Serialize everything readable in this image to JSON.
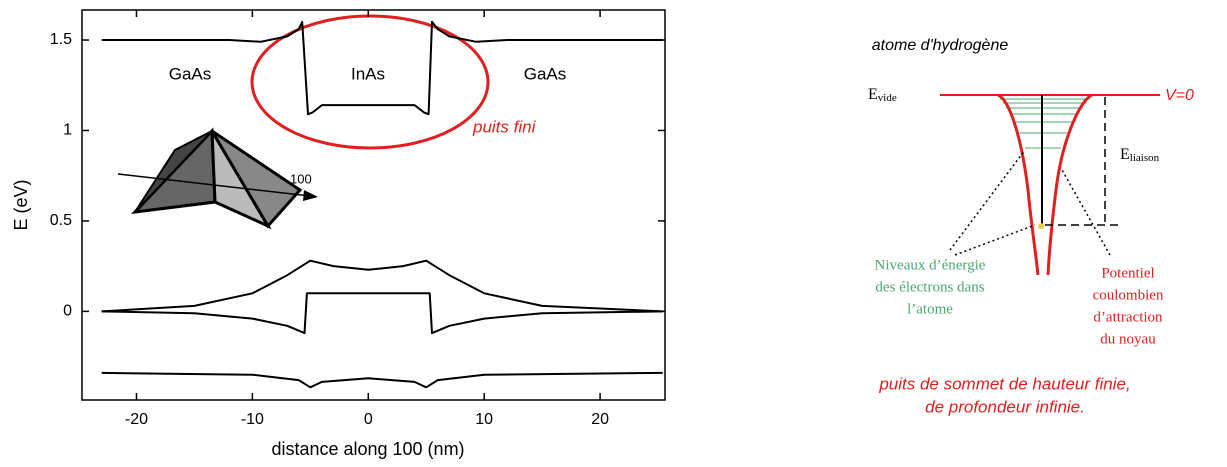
{
  "chart_data": {
    "type": "line",
    "xlabel": "distance along 100  (nm)",
    "ylabel": "E  (eV)",
    "xlim": [
      -24.7,
      25.6
    ],
    "ylim": [
      -0.49,
      1.666
    ],
    "xticks": [
      -20,
      -10,
      0,
      10,
      20
    ],
    "yticks": [
      0,
      0.5,
      1,
      1.5
    ],
    "series": [
      {
        "color": "#000000",
        "x": [
          -23,
          -12,
          -9.3,
          -7,
          -6,
          -5.7,
          -5.2,
          -4.8,
          -4,
          0,
          4,
          4.8,
          5.2,
          5.5,
          6,
          7,
          9.3,
          12,
          25.4
        ],
        "values": [
          1.5,
          1.5,
          1.49,
          1.52,
          1.56,
          1.6,
          1.09,
          1.1,
          1.14,
          1.14,
          1.14,
          1.1,
          1.09,
          1.6,
          1.56,
          1.52,
          1.49,
          1.5,
          1.5
        ]
      },
      {
        "color": "#000000",
        "x": [
          -23,
          -15,
          -10,
          -7,
          -5,
          -3,
          0,
          3,
          5,
          7,
          10,
          15,
          25.4
        ],
        "values": [
          0,
          0.03,
          0.1,
          0.2,
          0.28,
          0.25,
          0.23,
          0.25,
          0.28,
          0.2,
          0.1,
          0.03,
          0
        ]
      },
      {
        "color": "#000000",
        "x": [
          -23,
          -15,
          -10,
          -7,
          -5.5,
          -5.3,
          5.3,
          5.5,
          7,
          10,
          15,
          25.4
        ],
        "values": [
          0,
          -0.01,
          -0.04,
          -0.08,
          -0.12,
          0.1,
          0.1,
          -0.12,
          -0.08,
          -0.04,
          -0.01,
          0
        ]
      },
      {
        "color": "#000000",
        "x": [
          -23,
          -10,
          -6,
          -5,
          -4,
          0,
          4,
          5,
          6,
          10,
          25.4
        ],
        "values": [
          -0.34,
          -0.35,
          -0.38,
          -0.42,
          -0.39,
          -0.37,
          -0.39,
          -0.42,
          -0.38,
          -0.35,
          -0.34
        ]
      }
    ],
    "annotations": [
      "GaAs",
      "InAs",
      "GaAs",
      "100",
      "puits fini"
    ]
  },
  "diagram": {
    "title": "atome d'hydrogène",
    "e_vide": {
      "main": "E",
      "sub": "vide"
    },
    "v0": "V=0",
    "e_liaison": {
      "main": "E",
      "sub": "liaison"
    },
    "levels_label": [
      "Niveaux d’énergie",
      "des électrons dans",
      "l’atome"
    ],
    "potential_label": [
      "Potentiel",
      "coulombien",
      "d’attraction",
      "du noyau"
    ],
    "caption": [
      "puits de sommet de hauteur finie,",
      "de profondeur infinie."
    ]
  }
}
